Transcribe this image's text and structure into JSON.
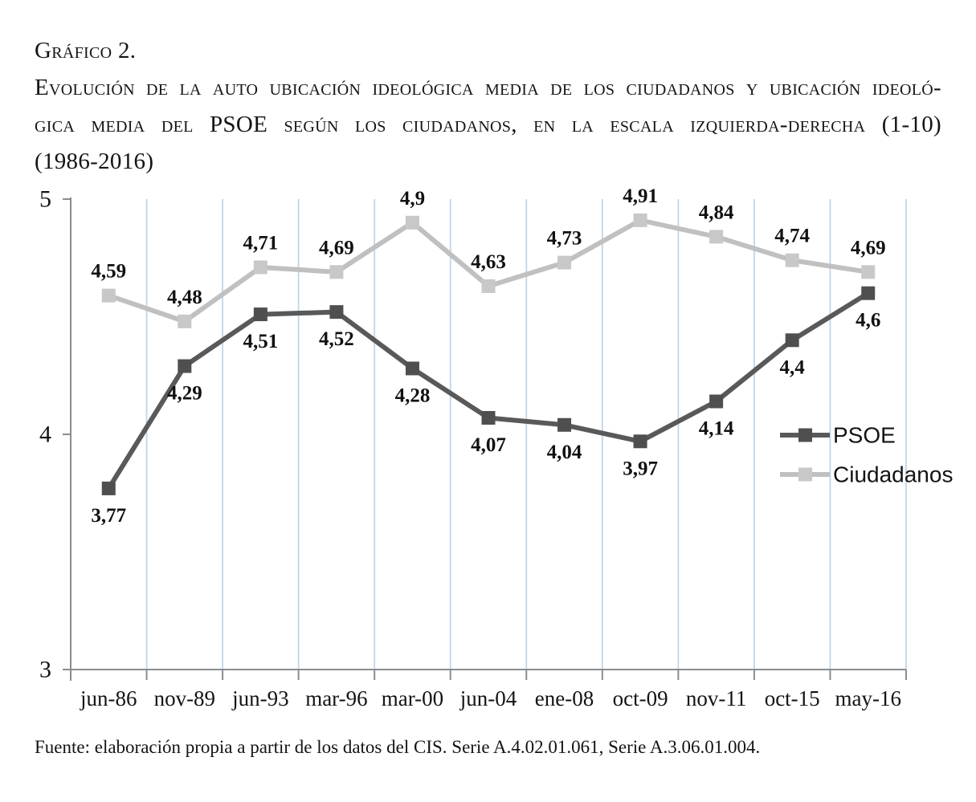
{
  "title": {
    "lines": [
      "Gráfico 2.",
      "Evolución de la auto ubicación ideológica media de los ciudadanos y ubicación ideoló-",
      "gica media del PSOE según los ciudadanos, en la escala izquierda-derecha (1-10)",
      "(1986-2016)"
    ]
  },
  "source": "Fuente: elaboración propia a partir de los datos del CIS. Serie A.4.02.01.061, Serie A.3.06.01.004.",
  "chart_data": {
    "type": "line",
    "categories": [
      "jun-86",
      "nov-89",
      "jun-93",
      "mar-96",
      "mar-00",
      "jun-04",
      "ene-08",
      "oct-09",
      "nov-11",
      "oct-15",
      "may-16"
    ],
    "series": [
      {
        "name": "PSOE",
        "line_color": "#595959",
        "marker_color": "#4f4f4f",
        "label_side": "below",
        "values": [
          3.77,
          4.29,
          4.51,
          4.52,
          4.28,
          4.07,
          4.04,
          3.97,
          4.14,
          4.4,
          4.6
        ],
        "labels": [
          "3,77",
          "4,29",
          "4,51",
          "4,52",
          "4,28",
          "4,07",
          "4,04",
          "3,97",
          "4,14",
          "4,4",
          "4,6"
        ]
      },
      {
        "name": "Ciudadanos",
        "line_color": "#c0c0c0",
        "marker_color": "#c8c8c8",
        "label_side": "above",
        "values": [
          4.59,
          4.48,
          4.71,
          4.69,
          4.9,
          4.63,
          4.73,
          4.91,
          4.84,
          4.74,
          4.69
        ],
        "labels": [
          "4,59",
          "4,48",
          "4,71",
          "4,69",
          "4,9",
          "4,63",
          "4,73",
          "4,91",
          "4,84",
          "4,74",
          "4,69"
        ]
      }
    ],
    "y_axis": {
      "min": 3,
      "max": 5,
      "ticks": [
        {
          "value": 5,
          "label": "5"
        },
        {
          "value": 4,
          "label": "4"
        },
        {
          "value": 3,
          "label": "3"
        }
      ]
    },
    "grid": {
      "vertical": true,
      "color": "#bdd6ea"
    },
    "axis_color": "#8c8c8c",
    "legend": {
      "position": "right-middle",
      "entries": [
        "PSOE",
        "Ciudadanos"
      ]
    }
  }
}
